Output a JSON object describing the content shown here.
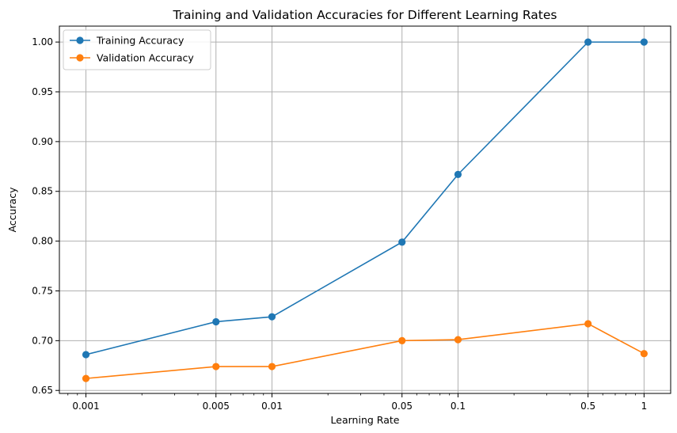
{
  "chart_data": {
    "type": "line",
    "title": "Training and Validation Accuracies for Different Learning Rates",
    "xlabel": "Learning Rate",
    "ylabel": "Accuracy",
    "x_scale": "log",
    "x": [
      0.001,
      0.005,
      0.01,
      0.05,
      0.1,
      0.5,
      1
    ],
    "x_tick_labels": [
      "0.001",
      "0.005",
      "0.01",
      "0.05",
      "0.1",
      "0.5",
      "1"
    ],
    "y_ticks": [
      0.65,
      0.7,
      0.75,
      0.8,
      0.85,
      0.9,
      0.95,
      1.0
    ],
    "y_tick_labels": [
      "0.65",
      "0.70",
      "0.75",
      "0.80",
      "0.85",
      "0.90",
      "0.95",
      "1.00"
    ],
    "xlim": [
      0.00072,
      1.39
    ],
    "ylim": [
      0.647,
      1.016
    ],
    "grid": true,
    "legend_position": "top-left",
    "series": [
      {
        "name": "Training Accuracy",
        "color": "#1f77b4",
        "values": [
          0.686,
          0.719,
          0.724,
          0.799,
          0.867,
          1.0,
          1.0
        ]
      },
      {
        "name": "Validation Accuracy",
        "color": "#ff7f0e",
        "values": [
          0.662,
          0.674,
          0.674,
          0.7,
          0.701,
          0.717,
          0.687
        ]
      }
    ]
  }
}
